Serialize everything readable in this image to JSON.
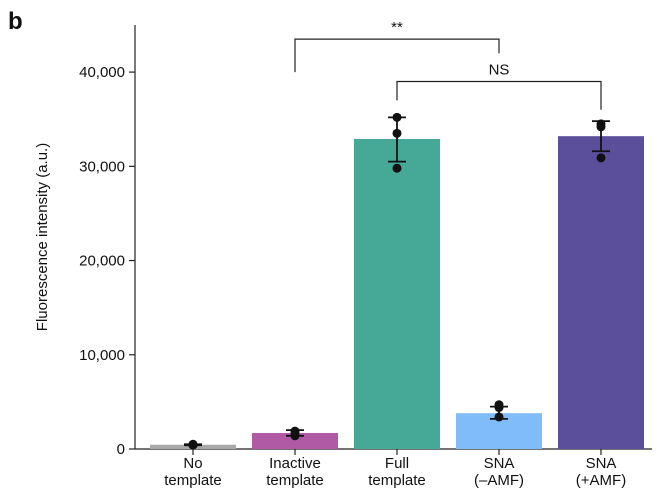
{
  "panel_label": "b",
  "chart_data": {
    "type": "bar",
    "categories": [
      [
        "No",
        "template"
      ],
      [
        "Inactive",
        "template"
      ],
      [
        "Full",
        "template"
      ],
      [
        "SNA",
        "(–AMF)"
      ],
      [
        "SNA",
        "(+AMF)"
      ]
    ],
    "values": [
      450,
      1700,
      32900,
      3800,
      33200
    ],
    "error_low": [
      400,
      1400,
      30500,
      3200,
      31600
    ],
    "error_high": [
      500,
      2000,
      35200,
      4500,
      34800
    ],
    "points": [
      [
        450,
        500,
        400
      ],
      [
        1400,
        1900,
        1700
      ],
      [
        35200,
        33500,
        29800
      ],
      [
        3400,
        4700,
        4400
      ],
      [
        34500,
        34200,
        30900
      ]
    ],
    "colors": [
      "#a8a8a8",
      "#b05aa5",
      "#46a896",
      "#7fbcf8",
      "#5b4f9c"
    ],
    "ylabel": "Fluorescence intensity (a.u.)",
    "xlabel": "",
    "ylim": [
      0,
      45000
    ],
    "yticks": [
      0,
      10000,
      20000,
      30000,
      40000
    ],
    "ytick_labels": [
      "0",
      "10,000",
      "20,000",
      "30,000",
      "40,000"
    ],
    "grid": false,
    "annotations": [
      {
        "from": 1,
        "to": 3,
        "label": "**",
        "level": 43500,
        "drop_left": 40000,
        "drop_right": 42000
      },
      {
        "from": 2,
        "to": 4,
        "label": "NS",
        "level": 39000,
        "drop_left": 37000,
        "drop_right": 36000
      }
    ]
  }
}
